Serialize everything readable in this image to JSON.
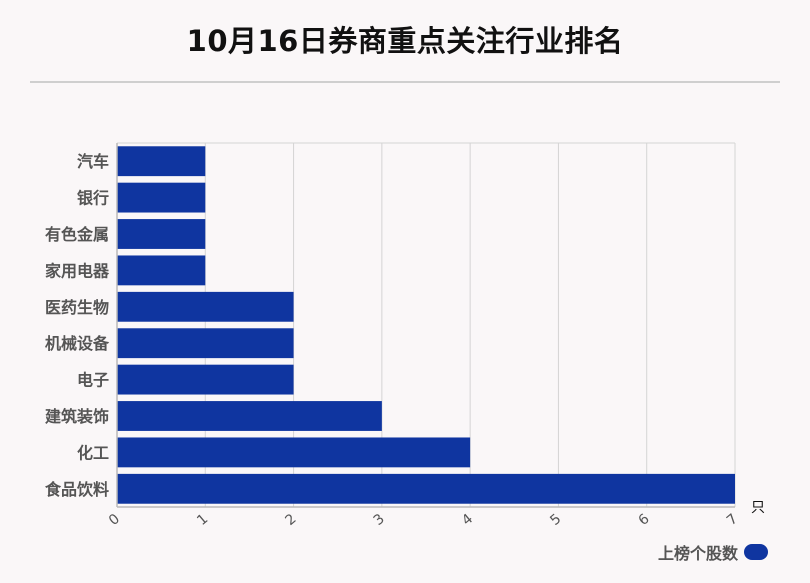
{
  "page": {
    "title": "10月16日券商重点关注行业排名"
  },
  "chart_data": {
    "type": "bar",
    "orientation": "horizontal",
    "categories": [
      "汽车",
      "银行",
      "有色金属",
      "家用电器",
      "医药生物",
      "机械设备",
      "电子",
      "建筑装饰",
      "化工",
      "食品饮料"
    ],
    "series": [
      {
        "name": "上榜个股数",
        "values": [
          1,
          1,
          1,
          1,
          2,
          2,
          2,
          3,
          4,
          7
        ]
      }
    ],
    "xlim": [
      0,
      7
    ],
    "xticks": [
      0,
      1,
      2,
      3,
      4,
      5,
      6,
      7
    ],
    "xunit": "只",
    "grid": true,
    "legend_position": "bottom-right",
    "colors": {
      "bar": "#0f35a0",
      "grid": "#d4d4d4",
      "axis": "#b9b9b9"
    }
  }
}
